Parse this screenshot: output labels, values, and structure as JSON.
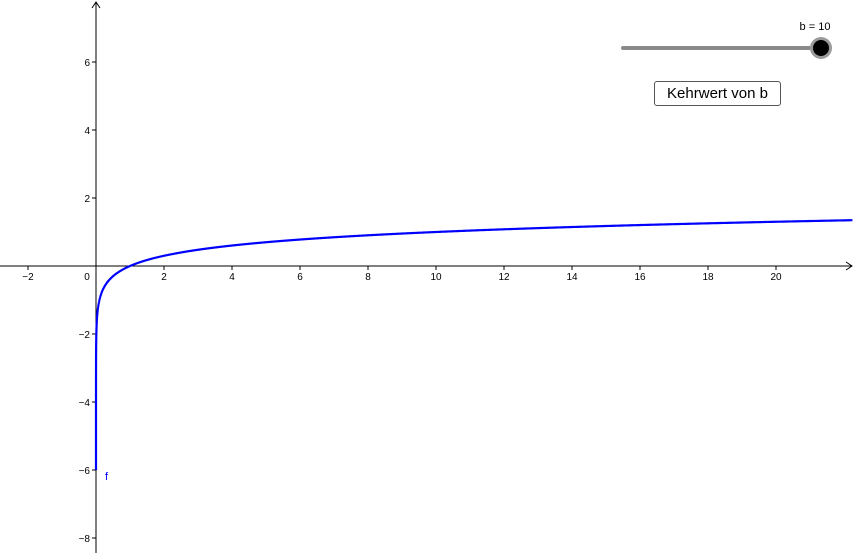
{
  "slider": {
    "label": "b = 10",
    "name": "b",
    "value": 10,
    "min": 0,
    "max": 10,
    "track_color": "#8a8a8a",
    "thumb_color": "#000000"
  },
  "button": {
    "label": "Kehrwert von b"
  },
  "graph": {
    "function_label": "f",
    "function_color": "#0000ff",
    "axis_color": "#000000",
    "x_range": [
      -2.8,
      22
    ],
    "y_range": [
      -8.4,
      7.8
    ],
    "x_ticks": [
      "−2",
      "0",
      "2",
      "4",
      "6",
      "8",
      "10",
      "12",
      "14",
      "16",
      "18",
      "20"
    ],
    "y_ticks": [
      "−8",
      "−6",
      "−4",
      "−2",
      "2",
      "4",
      "6"
    ]
  }
}
